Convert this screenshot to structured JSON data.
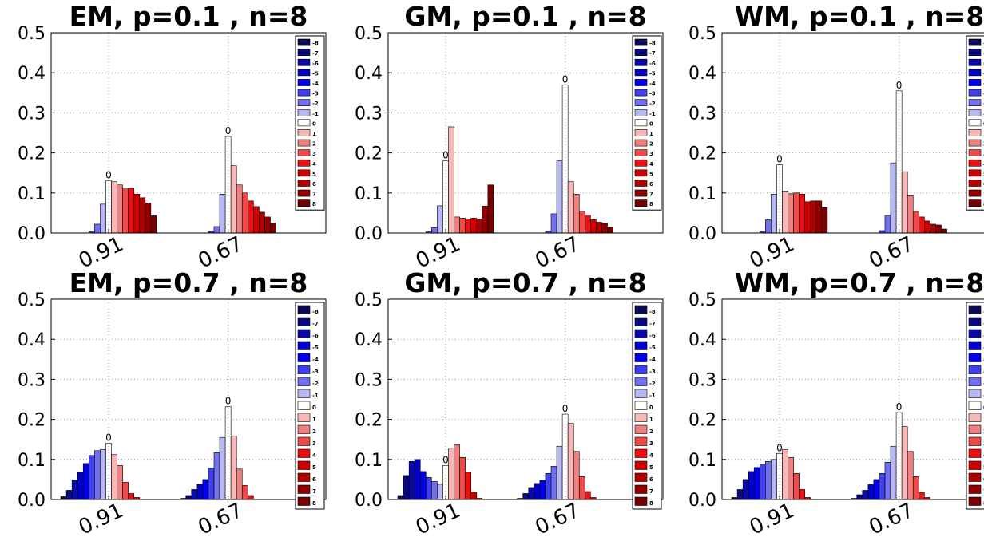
{
  "bin_labels": [
    "-8",
    "-7",
    "-6",
    "-5",
    "-4",
    "-3",
    "-2",
    "-1",
    "0",
    "1",
    "2",
    "3",
    "4",
    "5",
    "6",
    "7",
    "8"
  ],
  "bin_colors": [
    "#0a0a55",
    "#0a0a7e",
    "#0a0aa8",
    "#0000c8",
    "#0000ee",
    "#4040ee",
    "#7070f0",
    "#b8b8f5",
    "#ffffff",
    "#f8b8b8",
    "#f08080",
    "#ee4a4a",
    "#ee1010",
    "#d00000",
    "#b00000",
    "#900000",
    "#780000"
  ],
  "chart_data": [
    {
      "type": "bar",
      "title": "EM, p=0.1 , n=8",
      "categories": [
        "0.91",
        "0.67"
      ],
      "ylim": [
        0,
        0.5
      ],
      "yticks": [
        "0.0",
        "0.1",
        "0.2",
        "0.3",
        "0.4",
        "0.5"
      ],
      "grid": true,
      "legend": "upper-right",
      "peak_label": "0",
      "series_by_category": [
        [
          0,
          0,
          0,
          0,
          0,
          0.003,
          0.022,
          0.072,
          0.13,
          0.128,
          0.12,
          0.11,
          0.112,
          0.097,
          0.088,
          0.075,
          0.043
        ],
        [
          0,
          0,
          0,
          0,
          0,
          0.004,
          0.016,
          0.097,
          0.241,
          0.168,
          0.12,
          0.1,
          0.08,
          0.066,
          0.052,
          0.04,
          0.025
        ]
      ]
    },
    {
      "type": "bar",
      "title": "GM, p=0.1 , n=8",
      "categories": [
        "0.91",
        "0.67"
      ],
      "ylim": [
        0,
        0.5
      ],
      "yticks": [
        "0.0",
        "0.1",
        "0.2",
        "0.3",
        "0.4",
        "0.5"
      ],
      "grid": true,
      "legend": "upper-right",
      "peak_label": "0",
      "series_by_category": [
        [
          0,
          0,
          0,
          0,
          0,
          0.003,
          0.013,
          0.068,
          0.18,
          0.265,
          0.04,
          0.037,
          0.035,
          0.037,
          0.035,
          0.067,
          0.12
        ],
        [
          0,
          0,
          0,
          0,
          0,
          0.005,
          0.048,
          0.18,
          0.37,
          0.128,
          0.097,
          0.055,
          0.045,
          0.033,
          0.027,
          0.024,
          0.015
        ]
      ]
    },
    {
      "type": "bar",
      "title": "WM, p=0.1 , n=8",
      "categories": [
        "0.91",
        "0.67"
      ],
      "ylim": [
        0,
        0.5
      ],
      "yticks": [
        "0.0",
        "0.1",
        "0.2",
        "0.3",
        "0.4",
        "0.5"
      ],
      "grid": true,
      "legend": "upper-right",
      "peak_label": "0",
      "series_by_category": [
        [
          0,
          0,
          0,
          0,
          0,
          0.003,
          0.033,
          0.097,
          0.17,
          0.105,
          0.098,
          0.1,
          0.097,
          0.078,
          0.08,
          0.08,
          0.063
        ],
        [
          0,
          0,
          0,
          0,
          0,
          0.006,
          0.044,
          0.175,
          0.355,
          0.153,
          0.093,
          0.054,
          0.04,
          0.03,
          0.022,
          0.02,
          0.01
        ]
      ]
    },
    {
      "type": "bar",
      "title": "EM, p=0.7 , n=8",
      "categories": [
        "0.91",
        "0.67"
      ],
      "ylim": [
        0,
        0.5
      ],
      "yticks": [
        "0.0",
        "0.1",
        "0.2",
        "0.3",
        "0.4",
        "0.5"
      ],
      "grid": true,
      "legend": "upper-right",
      "peak_label": "0",
      "series_by_category": [
        [
          0.007,
          0.023,
          0.048,
          0.068,
          0.09,
          0.11,
          0.122,
          0.125,
          0.14,
          0.112,
          0.085,
          0.043,
          0.015,
          0.005,
          0,
          0,
          0
        ],
        [
          0.003,
          0.01,
          0.025,
          0.038,
          0.05,
          0.078,
          0.117,
          0.155,
          0.232,
          0.158,
          0.076,
          0.035,
          0.01,
          0,
          0,
          0,
          0
        ]
      ]
    },
    {
      "type": "bar",
      "title": "GM, p=0.7 , n=8",
      "categories": [
        "0.91",
        "0.67"
      ],
      "ylim": [
        0,
        0.5
      ],
      "yticks": [
        "0.0",
        "0.1",
        "0.2",
        "0.3",
        "0.4",
        "0.5"
      ],
      "grid": true,
      "legend": "upper-right",
      "peak_label": "0",
      "series_by_category": [
        [
          0.01,
          0.06,
          0.095,
          0.1,
          0.07,
          0.055,
          0.045,
          0.038,
          0.085,
          0.128,
          0.137,
          0.105,
          0.068,
          0.018,
          0.003,
          0,
          0
        ],
        [
          0.003,
          0.015,
          0.03,
          0.04,
          0.048,
          0.065,
          0.083,
          0.133,
          0.213,
          0.19,
          0.12,
          0.057,
          0.02,
          0.005,
          0,
          0,
          0
        ]
      ]
    },
    {
      "type": "bar",
      "title": "WM, p=0.7 , n=8",
      "categories": [
        "0.91",
        "0.67"
      ],
      "ylim": [
        0,
        0.5
      ],
      "yticks": [
        "0.0",
        "0.1",
        "0.2",
        "0.3",
        "0.4",
        "0.5"
      ],
      "grid": true,
      "legend": "upper-right",
      "peak_label": "0",
      "series_by_category": [
        [
          0.005,
          0.025,
          0.05,
          0.07,
          0.08,
          0.088,
          0.095,
          0.1,
          0.115,
          0.125,
          0.105,
          0.065,
          0.025,
          0.005,
          0,
          0,
          0
        ],
        [
          0.003,
          0.012,
          0.023,
          0.037,
          0.05,
          0.065,
          0.093,
          0.133,
          0.217,
          0.182,
          0.12,
          0.057,
          0.018,
          0.005,
          0,
          0,
          0
        ]
      ]
    }
  ]
}
